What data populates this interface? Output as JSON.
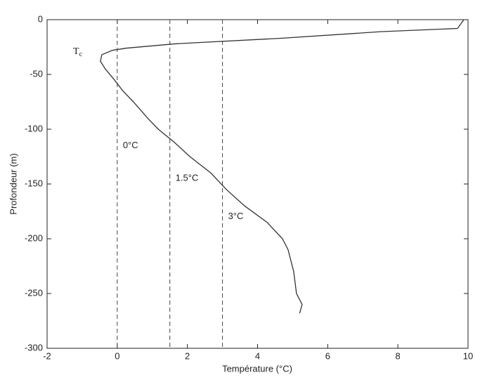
{
  "chart_data": {
    "type": "line",
    "x_label": "Température (°C)",
    "y_label": "Profondeur (m)",
    "x": [
      9.88,
      9.7,
      7.5,
      4.67,
      1.67,
      0.26,
      -0.14,
      -0.44,
      -0.48,
      -0.34,
      -0.08,
      0.16,
      0.46,
      0.87,
      1.17,
      1.63,
      2.07,
      2.67,
      3.11,
      3.63,
      4.27,
      4.71,
      4.87,
      5.03,
      5.11,
      5.27,
      5.2
    ],
    "values": [
      0,
      -8,
      -11,
      -17,
      -22,
      -26,
      -28,
      -32,
      -38,
      -45,
      -55,
      -65,
      -75,
      -90,
      -100,
      -112,
      -125,
      -140,
      -155,
      -170,
      -185,
      -200,
      -210,
      -230,
      -250,
      -260,
      -268
    ],
    "color": "#333333",
    "xlim": [
      -2,
      10
    ],
    "xticks": [
      -2,
      0,
      2,
      4,
      6,
      8,
      10
    ],
    "ylim": [
      -300,
      0
    ],
    "yticks": [
      -300,
      -250,
      -200,
      -150,
      -100,
      -50,
      0
    ],
    "reference_lines": [
      {
        "x": 0,
        "label": "0°C"
      },
      {
        "x": 1.5,
        "label": "1.5°C"
      },
      {
        "x": 3,
        "label": "3°C"
      }
    ],
    "curve_label": {
      "text": "T",
      "sub": "c"
    }
  }
}
